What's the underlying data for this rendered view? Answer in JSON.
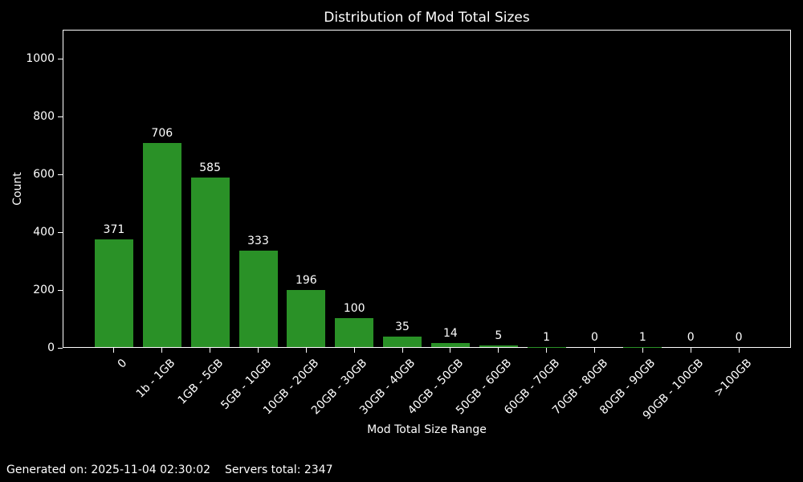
{
  "window": {
    "background": "#000000",
    "text_color": "#ffffff"
  },
  "chart_data": {
    "type": "bar",
    "title": "Distribution of Mod Total Sizes",
    "xlabel": "Mod Total Size Range",
    "ylabel": "Count",
    "categories": [
      "0",
      "1b - 1GB",
      "1GB - 5GB",
      "5GB - 10GB",
      "10GB - 20GB",
      "20GB - 30GB",
      "30GB - 40GB",
      "40GB - 50GB",
      "50GB - 60GB",
      "60GB - 70GB",
      "70GB - 80GB",
      "80GB - 90GB",
      "90GB - 100GB",
      ">100GB"
    ],
    "values": [
      371,
      706,
      585,
      333,
      196,
      100,
      35,
      14,
      5,
      1,
      0,
      1,
      0,
      0
    ],
    "value_labels_shown": true,
    "yticks": [
      0,
      200,
      400,
      600,
      800,
      1000
    ],
    "ylim": [
      0,
      1100
    ],
    "xtick_rotation_deg": 45,
    "grid": false,
    "legend": null,
    "bar_color": "#2a9127",
    "axis_color": "#ffffff",
    "background": "#000000"
  },
  "footer": {
    "generated_label": "Generated on: 2025-11-04 02:30:02",
    "servers_label": "Servers total: 2347"
  }
}
